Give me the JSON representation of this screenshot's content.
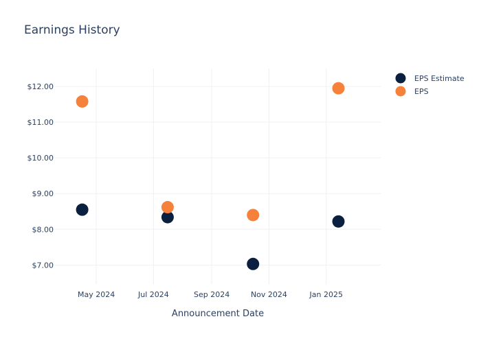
{
  "chart_data": {
    "type": "scatter",
    "title": "Earnings History",
    "xlabel": "Announcement Date",
    "ylabel": "",
    "x_type": "date",
    "xlim": [
      "2024-03-18",
      "2025-02-28"
    ],
    "ylim": [
      6.45,
      12.5
    ],
    "x_ticks": [
      {
        "date": "2024-05-01",
        "label": "May 2024"
      },
      {
        "date": "2024-07-01",
        "label": "Jul 2024"
      },
      {
        "date": "2024-09-01",
        "label": "Sep 2024"
      },
      {
        "date": "2024-11-01",
        "label": "Nov 2024"
      },
      {
        "date": "2025-01-01",
        "label": "Jan 2025"
      }
    ],
    "y_ticks": [
      {
        "value": 7,
        "label": "$7.00"
      },
      {
        "value": 8,
        "label": "$8.00"
      },
      {
        "value": 9,
        "label": "$9.00"
      },
      {
        "value": 10,
        "label": "$10.00"
      },
      {
        "value": 11,
        "label": "$11.00"
      },
      {
        "value": 12,
        "label": "$12.00"
      }
    ],
    "grid": true,
    "legend_position": "top-right",
    "series": [
      {
        "name": "EPS Estimate",
        "color": "#0b1f3f",
        "points": [
          {
            "x": "2024-04-16",
            "y": 8.55
          },
          {
            "x": "2024-07-16",
            "y": 8.34
          },
          {
            "x": "2024-10-15",
            "y": 7.03
          },
          {
            "x": "2025-01-14",
            "y": 8.22
          }
        ]
      },
      {
        "name": "EPS",
        "color": "#f5813a",
        "points": [
          {
            "x": "2024-04-16",
            "y": 11.58
          },
          {
            "x": "2024-07-16",
            "y": 8.62
          },
          {
            "x": "2024-10-15",
            "y": 8.4
          },
          {
            "x": "2025-01-14",
            "y": 11.95
          }
        ]
      }
    ]
  }
}
